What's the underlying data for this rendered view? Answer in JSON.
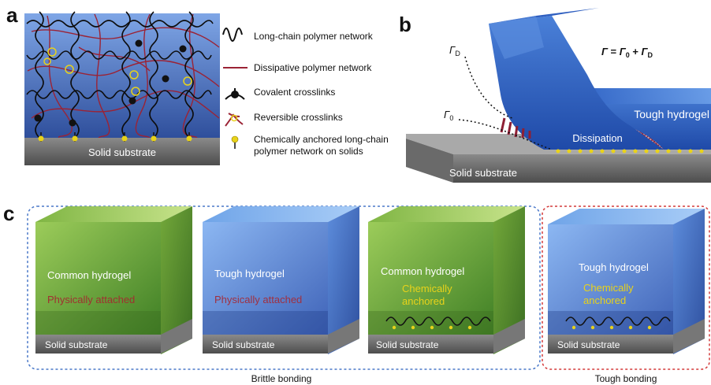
{
  "panel_letters": {
    "a": "a",
    "b": "b",
    "c": "c"
  },
  "panel_a": {
    "substrate": "Solid substrate",
    "legend": [
      {
        "icon": "wavy-line-icon",
        "label": "Long-chain polymer network"
      },
      {
        "icon": "red-line-icon",
        "label": "Dissipative polymer network"
      },
      {
        "icon": "covalent-crosslink-icon",
        "label": "Covalent crosslinks"
      },
      {
        "icon": "reversible-crosslink-icon",
        "label": "Reversible crosslinks"
      },
      {
        "icon": "anchor-pin-icon",
        "label": "Chemically anchored long-chain",
        "label2": "polymer network on solids"
      }
    ]
  },
  "panel_b": {
    "equation": {
      "g": "Γ",
      "eq": " = ",
      "g0": "Γ",
      "sub0": "0",
      "plus": " + ",
      "gd": "Γ",
      "subd": "D"
    },
    "gamma_d": {
      "g": "Γ",
      "sub": "D"
    },
    "gamma_0": {
      "g": "Γ",
      "sub": "0"
    },
    "dissipation": "Dissipation",
    "hydrogel": "Tough hydrogel",
    "substrate": "Solid substrate"
  },
  "panel_c": {
    "blocks": [
      {
        "gel": "Common hydrogel",
        "attach1": "Physically attached",
        "attach2": "",
        "substrate": "Solid substrate"
      },
      {
        "gel": "Tough hydrogel",
        "attach1": "Physically attached",
        "attach2": "",
        "substrate": "Solid substrate"
      },
      {
        "gel": "Common hydrogel",
        "attach1": "Chemically",
        "attach2": "anchored",
        "substrate": "Solid substrate"
      },
      {
        "gel": "Tough hydrogel",
        "attach1": "Chemically",
        "attach2": "anchored",
        "substrate": "Solid substrate"
      }
    ],
    "group_brittle": "Brittle bonding",
    "group_tough": "Tough bonding"
  },
  "colors": {
    "blue_gel": "#3f6fc8",
    "green_gel": "#6fae3a",
    "dissipative_red": "#9b2335",
    "anchor_yellow": "#e8d21a",
    "brittle_border": "#4a78c9",
    "tough_border": "#d43a3a"
  }
}
